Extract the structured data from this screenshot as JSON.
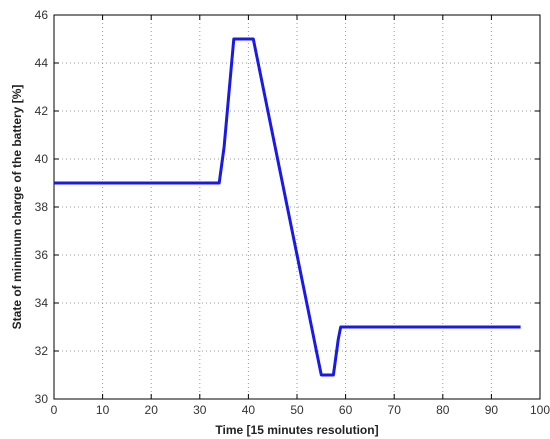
{
  "chart_data": {
    "type": "line",
    "xlabel": "Time [15 minutes resolution]",
    "ylabel": "State of minimum charge of the battery [%]",
    "xlim": [
      0,
      100
    ],
    "ylim": [
      30,
      46
    ],
    "xticks": [
      0,
      10,
      20,
      30,
      40,
      50,
      60,
      70,
      80,
      90,
      100
    ],
    "yticks": [
      30,
      32,
      34,
      36,
      38,
      40,
      42,
      44,
      46
    ],
    "grid": true,
    "series": [
      {
        "color": "#1a1ae6",
        "x": [
          0,
          34,
          35,
          37,
          41,
          53,
          54,
          55,
          57.5,
          58.5,
          59,
          96
        ],
        "y": [
          39,
          39,
          40.5,
          45,
          45,
          33,
          32,
          31,
          31,
          32.5,
          33,
          33
        ]
      }
    ]
  }
}
